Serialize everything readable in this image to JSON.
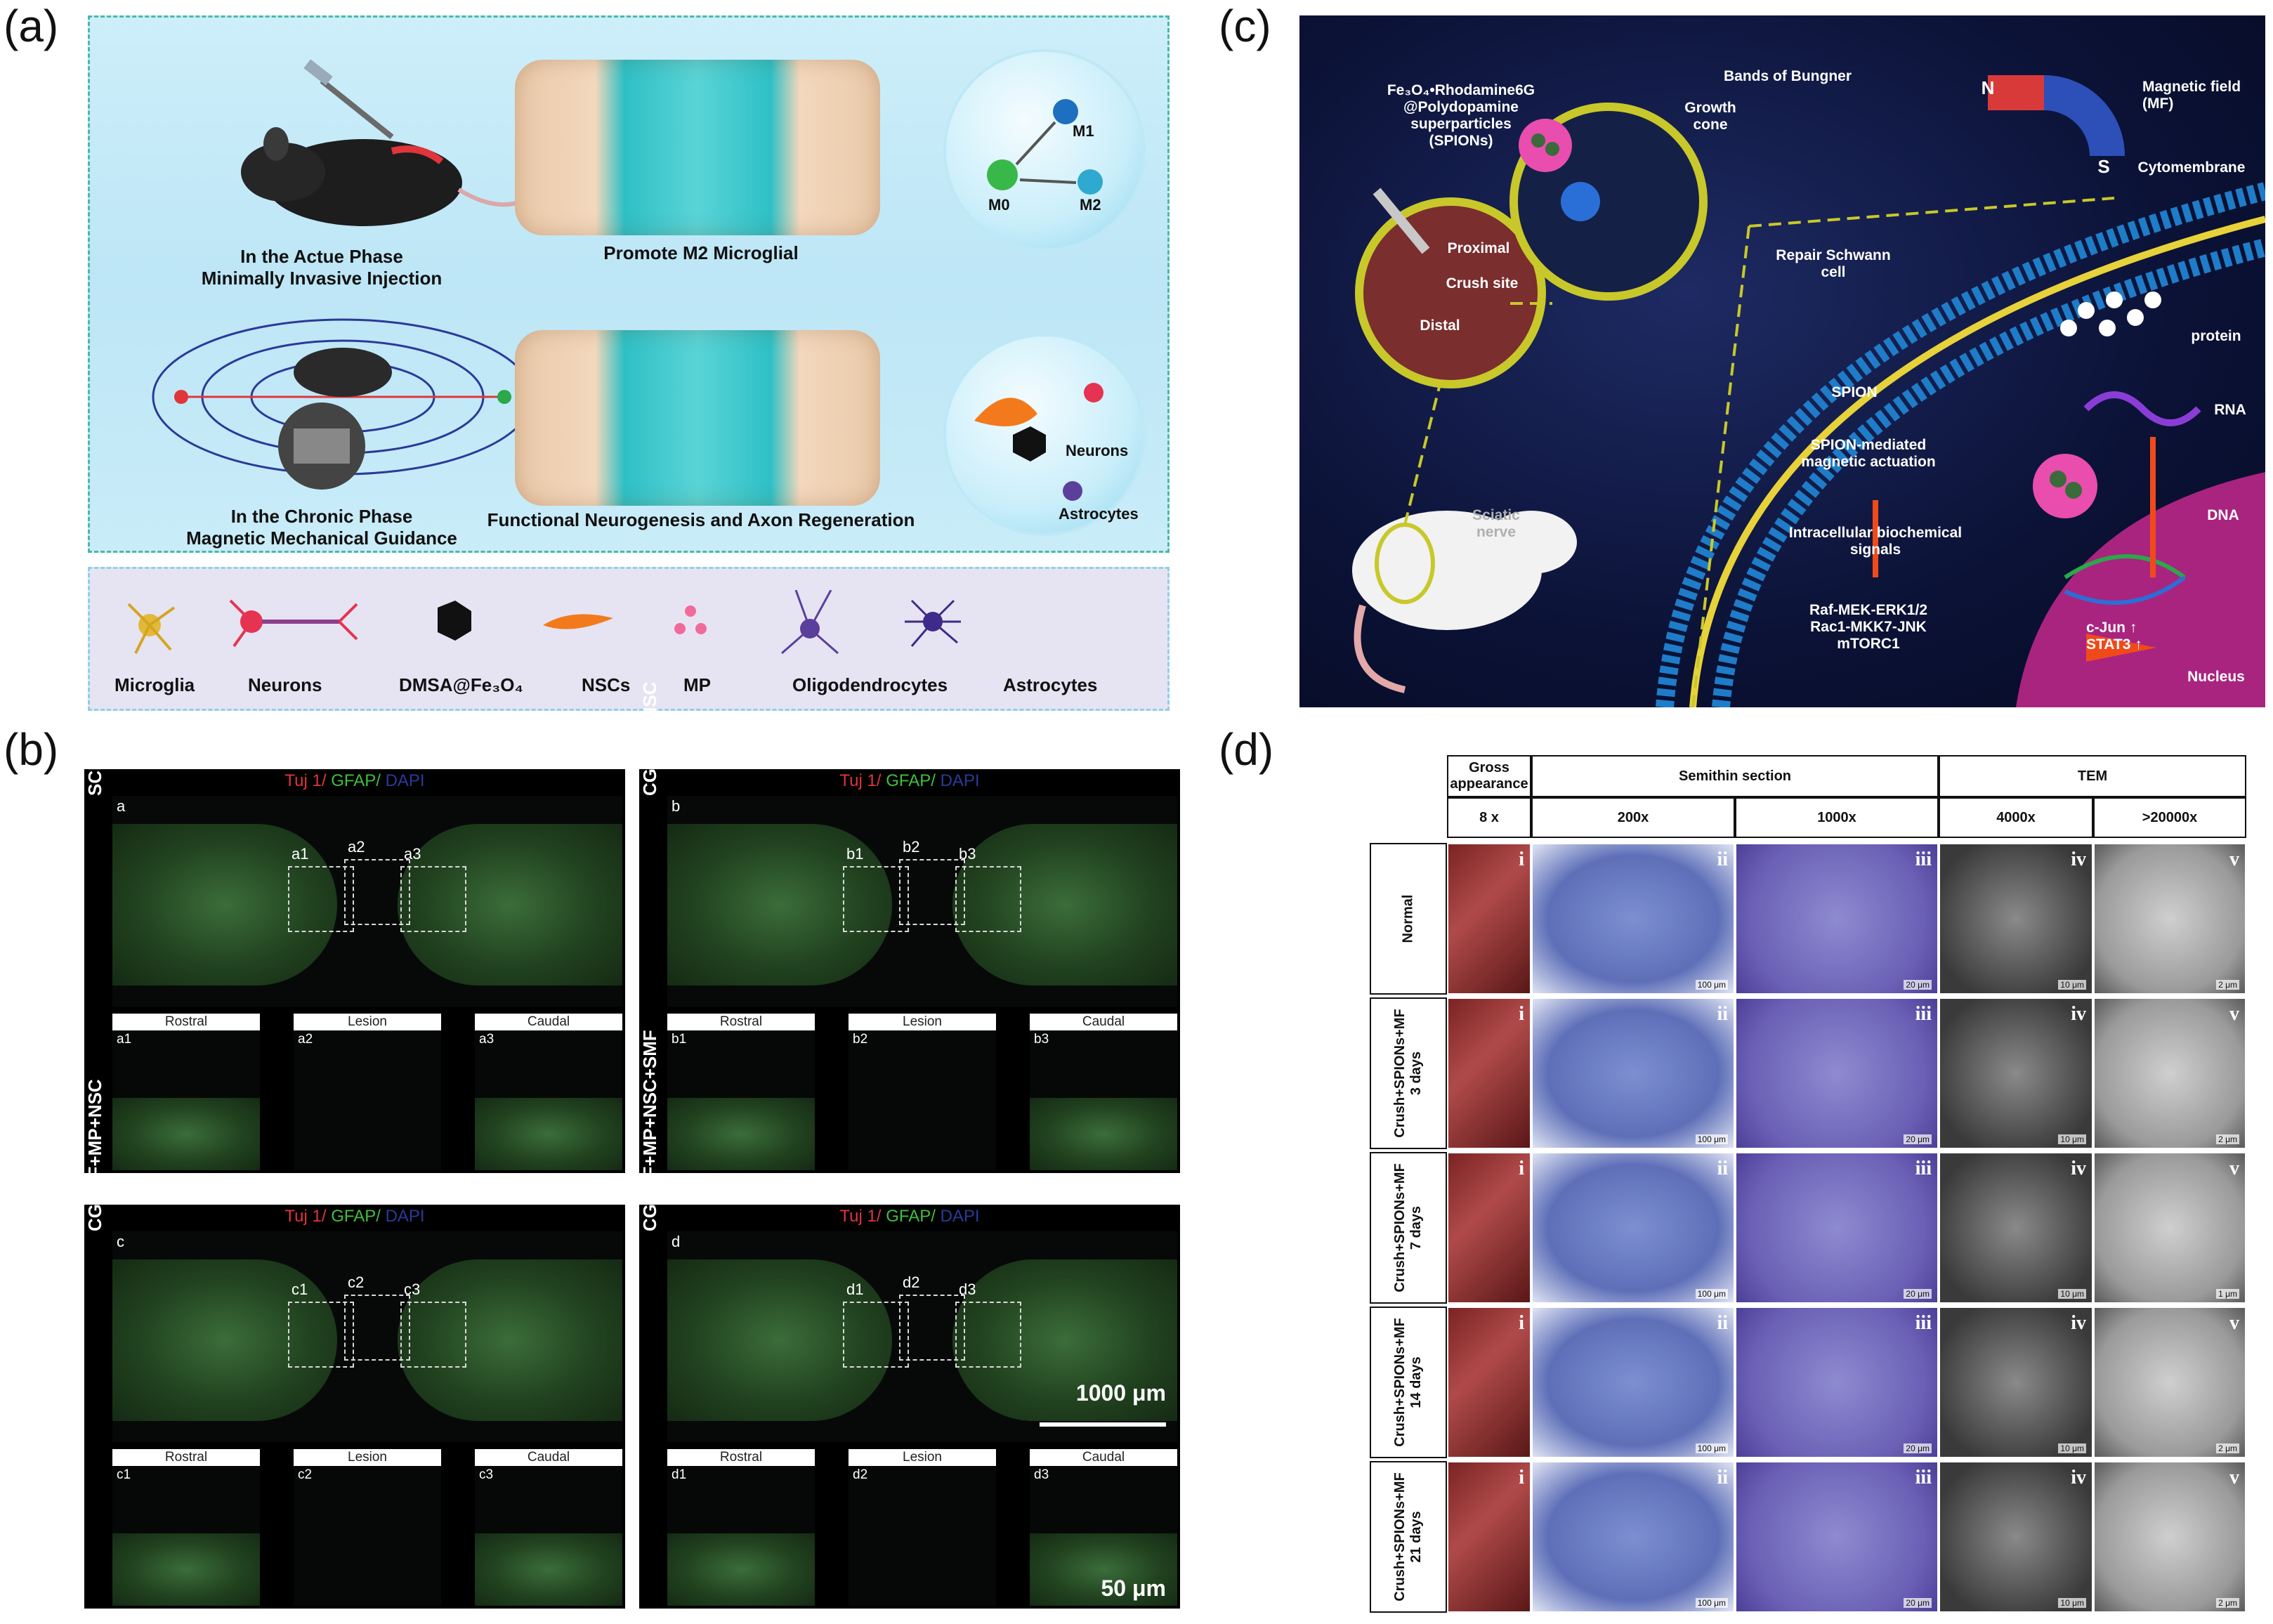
{
  "panel_letters": {
    "a": "(a)",
    "b": "(b)",
    "c": "(c)",
    "d": "(d)"
  },
  "panel_a": {
    "acute_caption_line1": "In the Actue Phase",
    "acute_caption_line2": "Minimally Invasive Injection",
    "m2_caption": "Promote M2 Microglial",
    "chronic_caption_line1": "In the Chronic Phase",
    "chronic_caption_line2": "Magnetic Mechanical Guidance",
    "neuro_caption": "Functional Neurogenesis and Axon Regeneration",
    "bubble1": {
      "m0": "M0",
      "m1": "M1",
      "m2": "M2"
    },
    "bubble2": {
      "neurons": "Neurons",
      "astrocytes": "Astrocytes"
    },
    "legend": [
      "Microglia",
      "Neurons",
      "DMSA@Fe₃O₄",
      "NSCs",
      "MP",
      "Oligodendrocytes",
      "Astrocytes"
    ]
  },
  "panel_c": {
    "spion_label_line1": "Fe₃O₄•Rhodamine6G",
    "spion_label_line2": "@Polydopamine",
    "spion_label_line3": "superparticles",
    "spion_label_line4": "(SPIONs)",
    "bands": "Bands of Bungner",
    "growth_cone_line1": "Growth",
    "growth_cone_line2": "cone",
    "proximal": "Proximal",
    "crush_site": "Crush site",
    "distal": "Distal",
    "repair_line1": "Repair Schwann",
    "repair_line2": "cell",
    "magnet_n": "N",
    "magnet_s": "S",
    "mf_line1": "Magnetic field",
    "mf_line2": "(MF)",
    "cytomembrane": "Cytomembrane",
    "protein": "protein",
    "rna": "RNA",
    "dna": "DNA",
    "spion": "SPION",
    "actuation_line1": "SPION-mediated",
    "actuation_line2": "magnetic actuation",
    "signals_line1": "Intracellular biochemical",
    "signals_line2": "signals",
    "path1": "Raf-MEK-ERK1/2",
    "path2": "Rac1-MKK7-JNK",
    "path3": "mTORC1",
    "cjun": "c-Jun ↑",
    "stat3": "STAT3 ↑",
    "nucleus": "Nucleus",
    "sciatic_line1": "Sciatic",
    "sciatic_line2": "nerve"
  },
  "panel_b": {
    "stain_tuj": "Tuj 1/",
    "stain_gfap": " GFAP/",
    "stain_dapi": " DAPI",
    "sub_labels": [
      "Rostral",
      "Lesion",
      "Caudal"
    ],
    "groups": [
      {
        "letter": "a",
        "name": "SCI",
        "boxes": [
          "a1",
          "a2",
          "a3"
        ]
      },
      {
        "letter": "b",
        "name": "CGCHF+NSC",
        "boxes": [
          "b1",
          "b2",
          "b3"
        ]
      },
      {
        "letter": "c",
        "name": "CGCHF+MP+NSC",
        "boxes": [
          "c1",
          "c2",
          "c3"
        ]
      },
      {
        "letter": "d",
        "name": "CGCHF+MP+NSC+SMF",
        "boxes": [
          "d1",
          "d2",
          "d3"
        ]
      }
    ],
    "scale_big": "1000 μm",
    "scale_small": "50 μm"
  },
  "panel_d": {
    "headers": {
      "gross": "Gross appearance",
      "semithin": "Semithin section",
      "tem": "TEM"
    },
    "mags": [
      "8 x",
      "200x",
      "1000x",
      "4000x",
      ">20000x"
    ],
    "rows": [
      {
        "label": "Normal",
        "scales": [
          "",
          "100 μm",
          "20 μm",
          "10 μm",
          "2 μm"
        ]
      },
      {
        "label": "Crush+SPIONs+MF\n3 days",
        "scales": [
          "",
          "100 μm",
          "20 μm",
          "10 μm",
          "2 μm"
        ]
      },
      {
        "label": "Crush+SPIONs+MF\n7 days",
        "scales": [
          "",
          "100 μm",
          "20 μm",
          "10 μm",
          "1 μm"
        ]
      },
      {
        "label": "Crush+SPIONs+MF\n14 days",
        "scales": [
          "",
          "100 μm",
          "20 μm",
          "10 μm",
          "2 μm"
        ]
      },
      {
        "label": "Crush+SPIONs+MF\n21 days",
        "scales": [
          "",
          "100 μm",
          "20 μm",
          "10 μm",
          "2 μm"
        ]
      }
    ],
    "roman": [
      "i",
      "ii",
      "iii",
      "iv",
      "v"
    ]
  }
}
